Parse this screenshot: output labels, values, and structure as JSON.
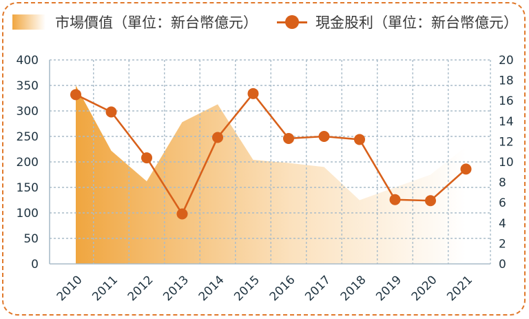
{
  "chart_data": {
    "type": "line",
    "categories": [
      "2010",
      "2011",
      "2012",
      "2013",
      "2014",
      "2015",
      "2016",
      "2017",
      "2018",
      "2019",
      "2020",
      "2021"
    ],
    "series": [
      {
        "name": "市場價值（單位：新台幣億元）",
        "type": "area",
        "axis": "left",
        "values": [
          350,
          222,
          162,
          278,
          313,
          204,
          198,
          190,
          125,
          150,
          175,
          230
        ]
      },
      {
        "name": "現金股利（單位：新台幣億元）",
        "type": "line",
        "axis": "right",
        "values": [
          16.6,
          14.9,
          10.4,
          4.9,
          12.4,
          16.7,
          12.3,
          12.5,
          12.2,
          6.3,
          6.2,
          9.3
        ]
      }
    ],
    "y_left": {
      "min": 0,
      "max": 400,
      "ticks": [
        0,
        50,
        100,
        150,
        200,
        250,
        300,
        350,
        400
      ]
    },
    "y_right": {
      "min": 0,
      "max": 20,
      "ticks": [
        0,
        2,
        4,
        6,
        8,
        10,
        12,
        14,
        16,
        18,
        20
      ]
    },
    "grid": true,
    "legend_position": "top-left"
  },
  "colors": {
    "line": "#d8601a",
    "area_start": "#f0a640",
    "area_mid": "#fbe1bd",
    "area_end": "#ffffff",
    "grid": "#a9bcc9",
    "axis_text": "#1f3340",
    "border": "#e0782a"
  }
}
